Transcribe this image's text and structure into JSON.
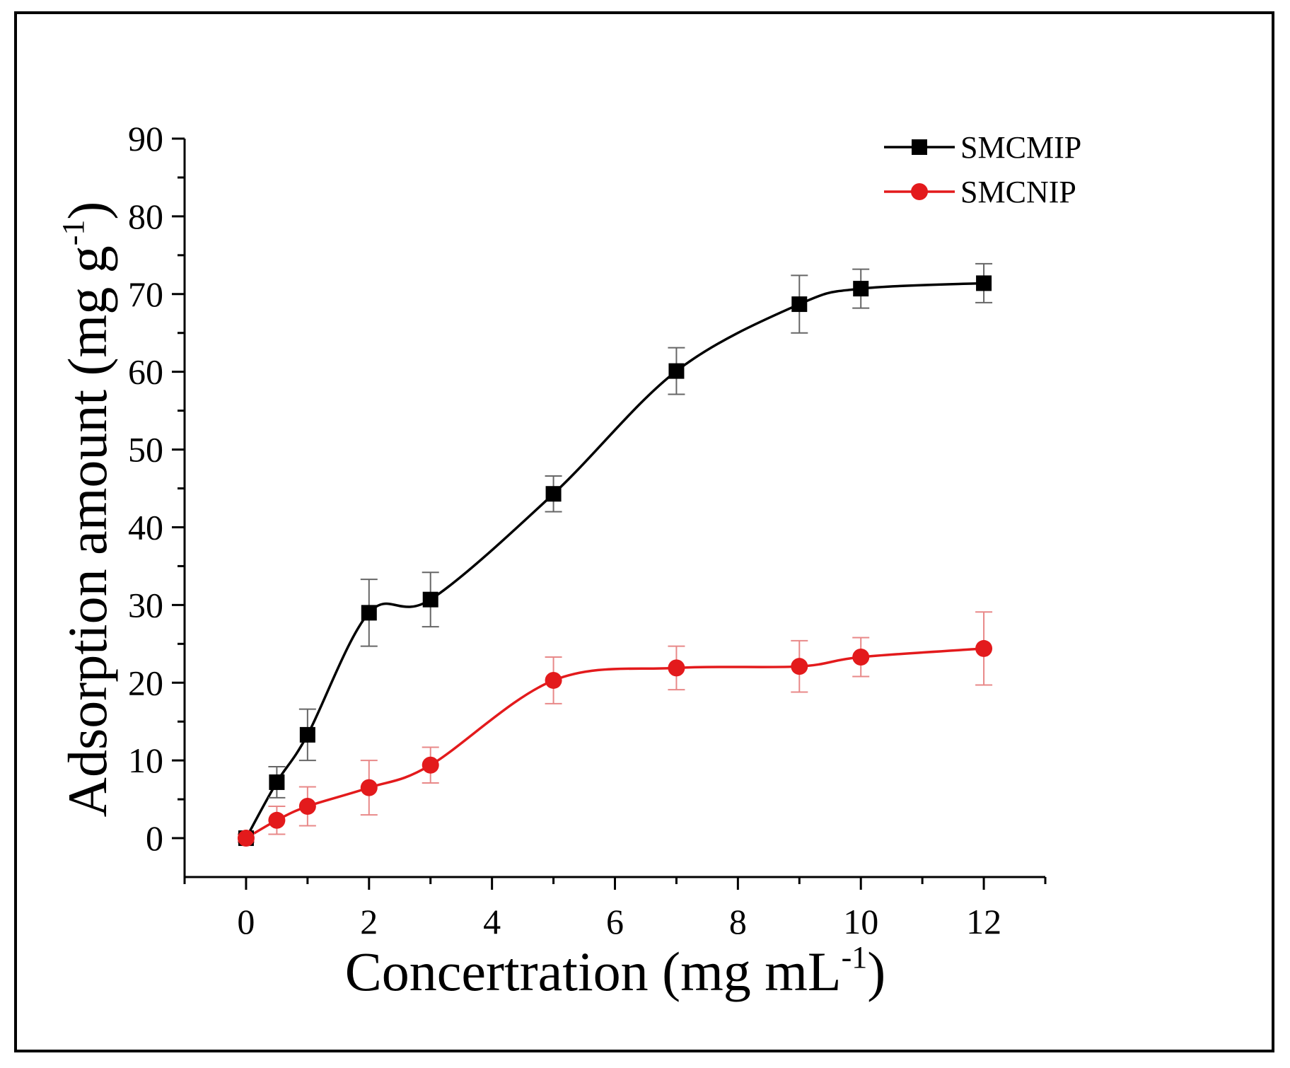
{
  "chart_data": {
    "type": "line",
    "title": "",
    "xlabel": "Concertration (mg mL",
    "xlabel_sup": "-1",
    "xlabel_tail": ")",
    "ylabel": "Adsorption amount (mg g",
    "ylabel_sup": "-1",
    "ylabel_tail": ")",
    "xlim": [
      -1,
      13
    ],
    "ylim": [
      -5,
      90
    ],
    "xticks": [
      0,
      2,
      4,
      6,
      8,
      10,
      12
    ],
    "yticks": [
      0,
      10,
      20,
      30,
      40,
      50,
      60,
      70,
      80,
      90
    ],
    "x": [
      0,
      0.5,
      1,
      2,
      3,
      5,
      7,
      9,
      10,
      12
    ],
    "series": [
      {
        "name": "SMCMIP",
        "color": "#000000",
        "marker": "square",
        "values": [
          0,
          7.2,
          13.3,
          29,
          30.7,
          44.3,
          60.1,
          68.7,
          70.7,
          71.4
        ],
        "errors": [
          0.5,
          2,
          3.3,
          4.3,
          3.5,
          2.3,
          3,
          3.7,
          2.5,
          2.5
        ]
      },
      {
        "name": "SMCNIP",
        "color": "#e31a1c",
        "marker": "circle",
        "values": [
          0,
          2.3,
          4.1,
          6.5,
          9.4,
          20.3,
          21.9,
          22.1,
          23.3,
          24.4
        ],
        "errors": [
          0.5,
          1.8,
          2.5,
          3.5,
          2.3,
          3,
          2.8,
          3.3,
          2.5,
          4.7
        ]
      }
    ],
    "legend_position": "top-right",
    "grid": false
  }
}
